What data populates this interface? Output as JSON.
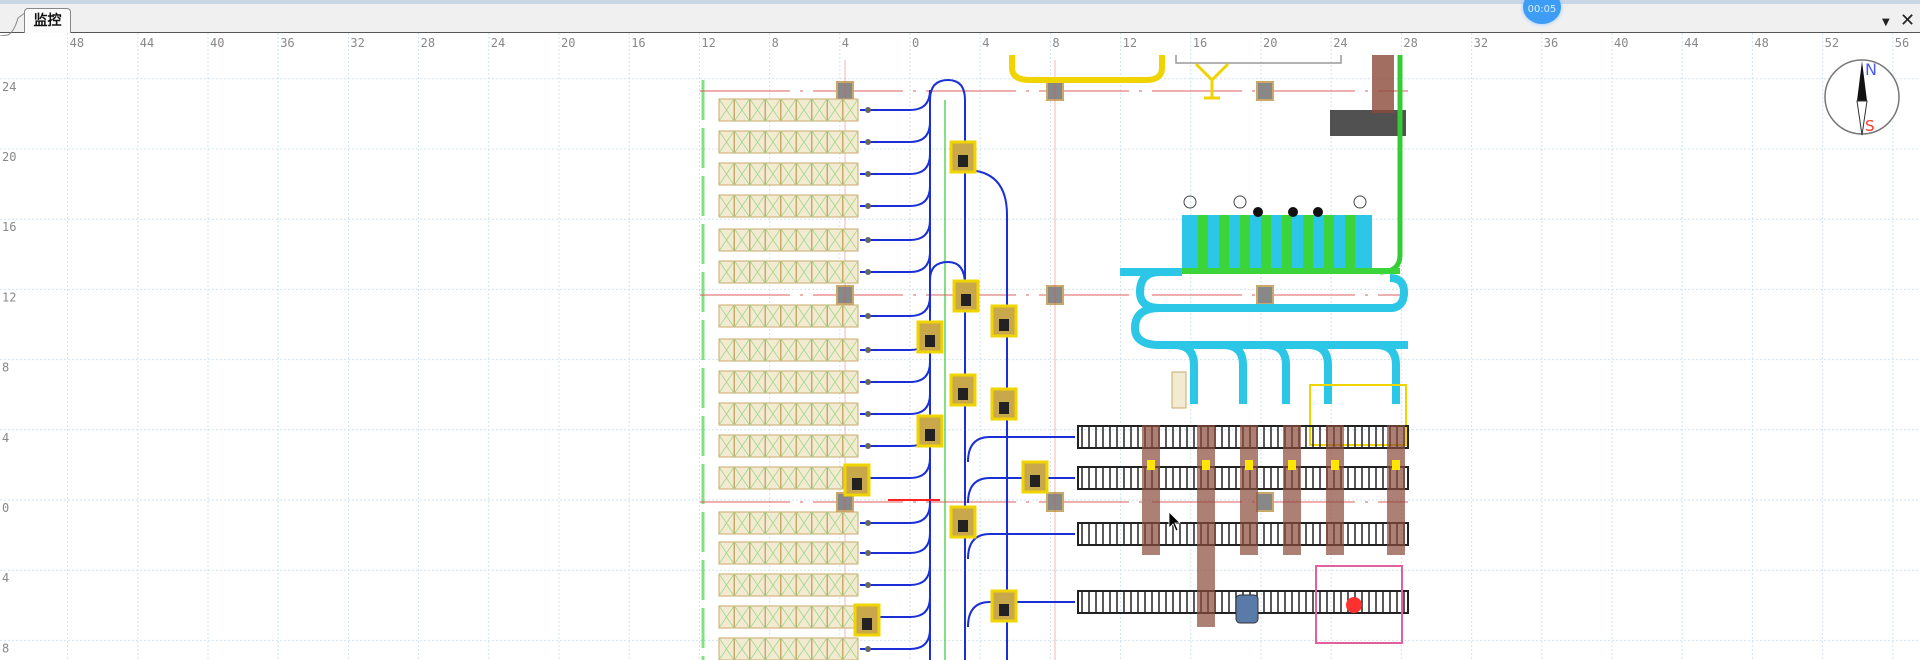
{
  "tabs": [
    {
      "label": "监控",
      "active": true
    }
  ],
  "timer": "00:05",
  "window_controls": {
    "dropdown_icon": "caret-down-icon",
    "close_icon": "close-icon"
  },
  "ruler": {
    "x_labels": [
      48,
      44,
      40,
      36,
      32,
      28,
      24,
      20,
      16,
      12,
      8,
      4,
      0,
      4,
      8,
      12,
      16,
      20,
      24,
      28,
      32,
      36,
      40,
      44,
      48,
      52,
      56
    ],
    "y_labels": [
      24,
      20,
      16,
      12,
      8,
      4,
      0,
      4,
      8
    ]
  },
  "compass": {
    "north": "N",
    "south": "S",
    "north_color": "#4a5cff",
    "south_color": "#ff3a2a"
  },
  "colors": {
    "grid": "#cfe3ee",
    "rack": "#c9a96a",
    "track": "#1a2fd6",
    "machine": "#f0d400",
    "conveyor": "#222222",
    "loop": "#2cc6e6",
    "rail_green": "#33cc33",
    "axis_red": "#e05050"
  }
}
